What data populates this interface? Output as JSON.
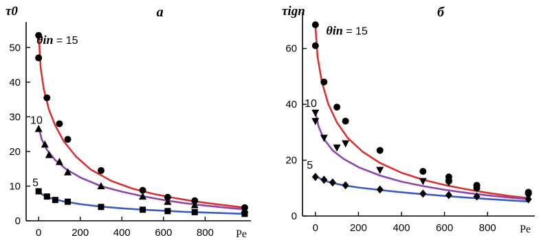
{
  "chart_data": [
    {
      "type": "scatter",
      "panel_label": "a",
      "ylabel": "τ0",
      "xlabel": "Pe",
      "xlim": [
        -60,
        1020
      ],
      "ylim": [
        0,
        55
      ],
      "xticks": [
        0,
        200,
        400,
        600,
        800
      ],
      "yticks": [
        0,
        10,
        20,
        30,
        40,
        50
      ],
      "grid": false,
      "annotations": [
        {
          "text_prefix": "θin",
          "text_suffix": " = 15",
          "x": -10,
          "y": 51
        },
        {
          "text": "10",
          "x": -40,
          "y": 28
        },
        {
          "text": "5",
          "x": -30,
          "y": 10
        }
      ],
      "series": [
        {
          "theta": 15,
          "marker": "circle",
          "color": "#d63232",
          "points": [
            [
              0,
              53.5
            ],
            [
              0,
              47
            ],
            [
              40,
              35.5
            ],
            [
              100,
              28
            ],
            [
              140,
              23.5
            ],
            [
              300,
              14.5
            ],
            [
              500,
              8.8
            ],
            [
              620,
              6.8
            ],
            [
              750,
              5.8
            ],
            [
              990,
              3.8
            ]
          ],
          "fit": [
            [
              0,
              54
            ],
            [
              10,
              44
            ],
            [
              25,
              38
            ],
            [
              50,
              32
            ],
            [
              80,
              27.5
            ],
            [
              120,
              23
            ],
            [
              180,
              18.5
            ],
            [
              250,
              14.8
            ],
            [
              350,
              11.5
            ],
            [
              450,
              9.3
            ],
            [
              550,
              7.8
            ],
            [
              650,
              6.6
            ],
            [
              750,
              5.6
            ],
            [
              850,
              4.8
            ],
            [
              990,
              3.8
            ]
          ]
        },
        {
          "theta": 10,
          "marker": "triangle",
          "color": "#8e44ad",
          "points": [
            [
              0,
              26.5
            ],
            [
              30,
              22
            ],
            [
              50,
              19
            ],
            [
              100,
              17
            ],
            [
              140,
              14
            ],
            [
              300,
              10
            ],
            [
              500,
              7
            ],
            [
              620,
              5.5
            ],
            [
              750,
              4.5
            ],
            [
              990,
              3.2
            ]
          ],
          "fit": [
            [
              0,
              27
            ],
            [
              15,
              23.5
            ],
            [
              40,
              20.5
            ],
            [
              80,
              17.5
            ],
            [
              130,
              15
            ],
            [
              200,
              12.5
            ],
            [
              300,
              10
            ],
            [
              400,
              8.4
            ],
            [
              500,
              7.1
            ],
            [
              600,
              6
            ],
            [
              700,
              5.1
            ],
            [
              800,
              4.4
            ],
            [
              900,
              3.8
            ],
            [
              990,
              3.3
            ]
          ]
        },
        {
          "theta": 5,
          "marker": "square",
          "color": "#3a5bbf",
          "points": [
            [
              0,
              8.5
            ],
            [
              40,
              7
            ],
            [
              80,
              6
            ],
            [
              140,
              5.5
            ],
            [
              300,
              4
            ],
            [
              500,
              3.2
            ],
            [
              620,
              2.8
            ],
            [
              750,
              2.5
            ],
            [
              990,
              2
            ]
          ],
          "fit": [
            [
              0,
              8.5
            ],
            [
              20,
              7.5
            ],
            [
              60,
              6.5
            ],
            [
              120,
              5.6
            ],
            [
              200,
              4.8
            ],
            [
              300,
              4.1
            ],
            [
              400,
              3.6
            ],
            [
              500,
              3.2
            ],
            [
              600,
              2.9
            ],
            [
              700,
              2.6
            ],
            [
              800,
              2.4
            ],
            [
              900,
              2.2
            ],
            [
              990,
              2
            ]
          ]
        }
      ]
    },
    {
      "type": "scatter",
      "panel_label": "б",
      "ylabel": "τign",
      "xlabel": "Pe",
      "xlim": [
        -60,
        1020
      ],
      "ylim": [
        0,
        70
      ],
      "xticks": [
        0,
        200,
        400,
        600,
        800
      ],
      "yticks": [
        0,
        20,
        40,
        60
      ],
      "grid": false,
      "annotations": [
        {
          "text_prefix": "θin",
          "text_suffix": " = 15",
          "x": 50,
          "y": 65
        },
        {
          "text": "10",
          "x": -50,
          "y": 39
        },
        {
          "text": "5",
          "x": -40,
          "y": 17
        }
      ],
      "series": [
        {
          "theta": 15,
          "marker": "circle",
          "color": "#d63232",
          "points": [
            [
              0,
              68.5
            ],
            [
              0,
              61
            ],
            [
              40,
              48
            ],
            [
              100,
              39
            ],
            [
              140,
              34
            ],
            [
              300,
              23.5
            ],
            [
              500,
              16
            ],
            [
              620,
              14
            ],
            [
              620,
              12.5
            ],
            [
              750,
              11
            ],
            [
              750,
              10
            ],
            [
              990,
              8.5
            ]
          ],
          "fit": [
            [
              0,
              68
            ],
            [
              10,
              57
            ],
            [
              30,
              48
            ],
            [
              60,
              40
            ],
            [
              100,
              33.5
            ],
            [
              150,
              28
            ],
            [
              220,
              23
            ],
            [
              300,
              19
            ],
            [
              400,
              15.5
            ],
            [
              500,
              13
            ],
            [
              600,
              11.1
            ],
            [
              700,
              9.6
            ],
            [
              800,
              8.3
            ],
            [
              900,
              7.2
            ],
            [
              990,
              6.4
            ]
          ]
        },
        {
          "theta": 10,
          "marker": "triangle-down",
          "color": "#8e44ad",
          "points": [
            [
              0,
              37
            ],
            [
              0,
              34
            ],
            [
              40,
              28
            ],
            [
              100,
              24.5
            ],
            [
              140,
              26
            ],
            [
              300,
              16.5
            ],
            [
              500,
              12.5
            ],
            [
              620,
              12
            ],
            [
              750,
              10
            ],
            [
              990,
              7
            ]
          ],
          "fit": [
            [
              0,
              37
            ],
            [
              15,
              32
            ],
            [
              40,
              27.5
            ],
            [
              80,
              23.5
            ],
            [
              130,
              20.5
            ],
            [
              200,
              17.5
            ],
            [
              300,
              14.5
            ],
            [
              400,
              12.3
            ],
            [
              500,
              10.7
            ],
            [
              600,
              9.4
            ],
            [
              700,
              8.3
            ],
            [
              800,
              7.4
            ],
            [
              900,
              6.6
            ],
            [
              990,
              6
            ]
          ]
        },
        {
          "theta": 5,
          "marker": "diamond",
          "color": "#3a5bbf",
          "points": [
            [
              0,
              14
            ],
            [
              40,
              13
            ],
            [
              80,
              12
            ],
            [
              140,
              11
            ],
            [
              300,
              9.5
            ],
            [
              500,
              8
            ],
            [
              620,
              7.5
            ],
            [
              750,
              7
            ],
            [
              990,
              6
            ]
          ],
          "fit": [
            [
              0,
              14.5
            ],
            [
              30,
              13
            ],
            [
              70,
              12
            ],
            [
              130,
              11
            ],
            [
              200,
              10.2
            ],
            [
              300,
              9.3
            ],
            [
              400,
              8.5
            ],
            [
              500,
              7.8
            ],
            [
              600,
              7.2
            ],
            [
              700,
              6.6
            ],
            [
              800,
              6.1
            ],
            [
              900,
              5.6
            ],
            [
              990,
              5.2
            ]
          ]
        }
      ]
    }
  ]
}
